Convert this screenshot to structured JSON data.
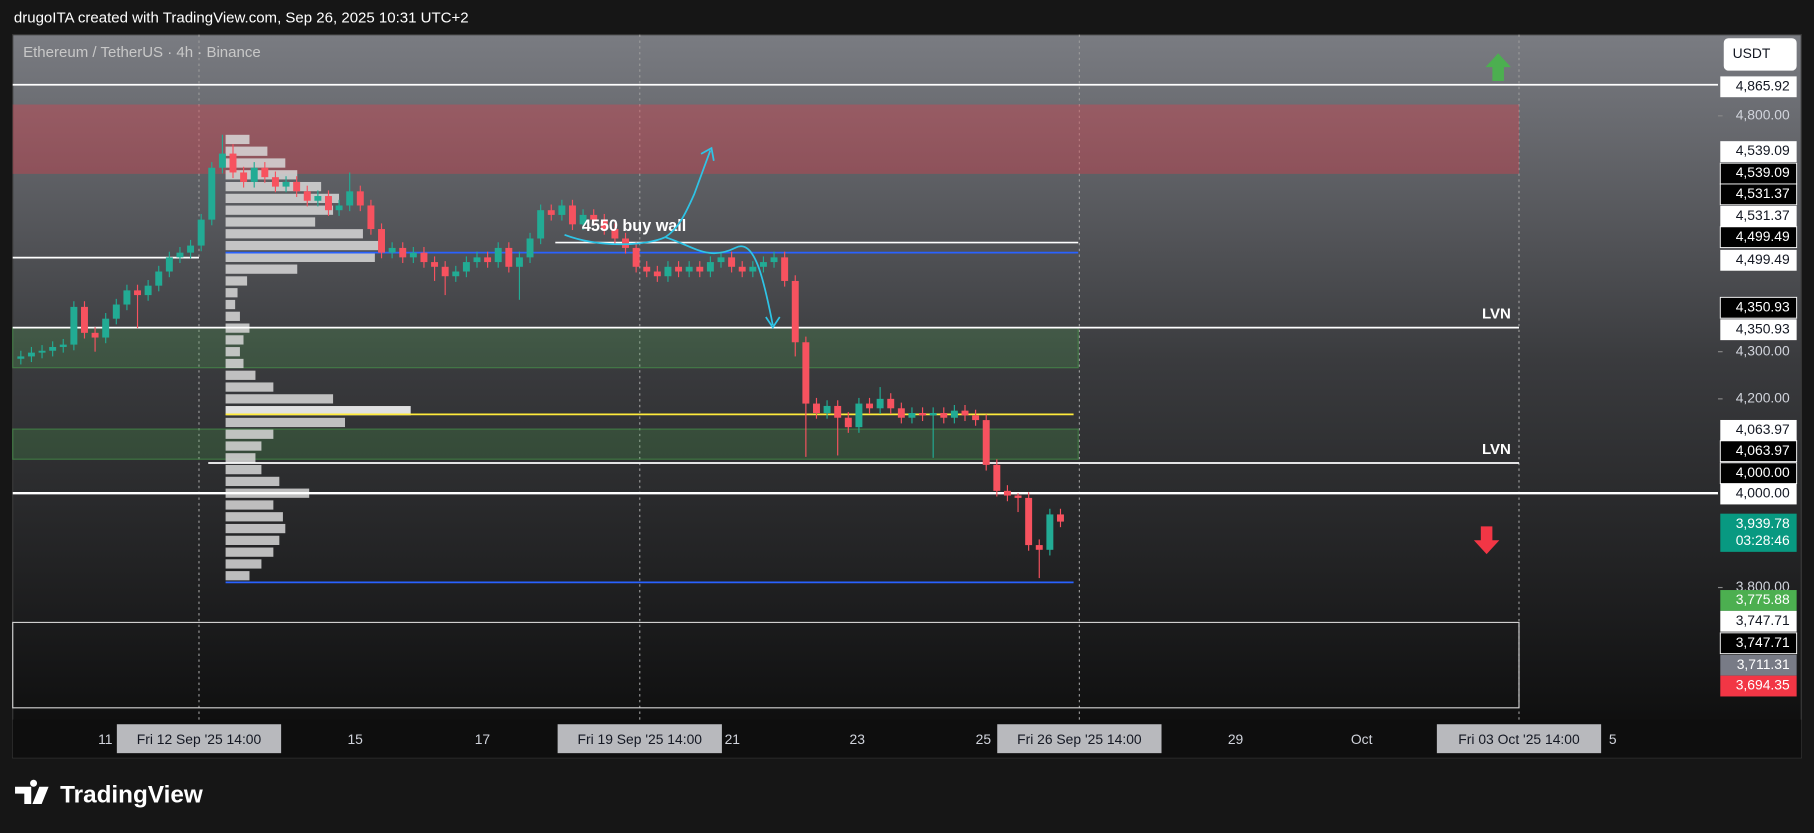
{
  "header": {
    "credit": "drugoITA created with TradingView.com, Sep 26, 2025 10:31 UTC+2",
    "logo": "TradingView"
  },
  "chart_data": {
    "type": "candlestick",
    "title": "Ethereum / TetherUS · 4h · Binance",
    "currency": "USDT",
    "up_color": "#22ab94",
    "down_color": "#f7525f",
    "ylim": [
      3520,
      4972
    ],
    "yticks": [
      {
        "value": 4800,
        "label": "4,800.00"
      },
      {
        "value": 4300,
        "label": "4,300.00"
      },
      {
        "value": 4200,
        "label": "4,200.00"
      },
      {
        "value": 3800,
        "label": "3,800.00"
      }
    ],
    "x_labels": [
      {
        "text": "11",
        "highlighted": false
      },
      {
        "text": "Fri 12 Sep '25   14:00",
        "highlighted": true
      },
      {
        "text": "15",
        "highlighted": false
      },
      {
        "text": "17",
        "highlighted": false
      },
      {
        "text": "Fri 19 Sep '25   14:00",
        "highlighted": true
      },
      {
        "text": "21",
        "highlighted": false
      },
      {
        "text": "23",
        "highlighted": false
      },
      {
        "text": "25",
        "highlighted": false
      },
      {
        "text": "Fri 26 Sep '25   14:00",
        "highlighted": true
      },
      {
        "text": "29",
        "highlighted": false
      },
      {
        "text": "Oct",
        "highlighted": false
      },
      {
        "text": "Fri 03 Oct '25   14:00",
        "highlighted": true
      },
      {
        "text": "5",
        "highlighted": false
      }
    ],
    "candles": {
      "open": [
        4285,
        4290,
        4298,
        4302,
        4310,
        4315,
        4395,
        4340,
        4330,
        4370,
        4400,
        4430,
        4420,
        4440,
        4470,
        4500,
        4510,
        4525,
        4580,
        4690,
        4720,
        4680,
        4660,
        4690,
        4670,
        4650,
        4660,
        4640,
        4620,
        4630,
        4600,
        4610,
        4640,
        4610,
        4560,
        4510,
        4520,
        4500,
        4510,
        4490,
        4480,
        4460,
        4470,
        4490,
        4500,
        4490,
        4520,
        4480,
        4500,
        4540,
        4600,
        4590,
        4610,
        4570,
        4590,
        4580,
        4560,
        4540,
        4520,
        4480,
        4470,
        4460,
        4480,
        4470,
        4480,
        4470,
        4490,
        4500,
        4480,
        4470,
        4480,
        4490,
        4500,
        4450,
        4320,
        4190,
        4170,
        4185,
        4160,
        4140,
        4190,
        4180,
        4200,
        4180,
        4160,
        4170,
        4165,
        4170,
        4160,
        4175,
        4165,
        4155,
        4060,
        4005,
        3995,
        3990,
        3890,
        3880,
        3955
      ],
      "high": [
        4302,
        4310,
        4314,
        4322,
        4327,
        4407,
        4407,
        4352,
        4382,
        4412,
        4442,
        4442,
        4452,
        4482,
        4512,
        4522,
        4537,
        4592,
        4702,
        4760,
        4740,
        4692,
        4702,
        4702,
        4682,
        4672,
        4672,
        4652,
        4642,
        4642,
        4622,
        4680,
        4652,
        4622,
        4572,
        4532,
        4532,
        4522,
        4522,
        4502,
        4492,
        4482,
        4502,
        4512,
        4512,
        4532,
        4532,
        4512,
        4552,
        4612,
        4612,
        4622,
        4622,
        4602,
        4602,
        4592,
        4572,
        4552,
        4532,
        4492,
        4482,
        4492,
        4492,
        4492,
        4492,
        4502,
        4512,
        4512,
        4492,
        4492,
        4502,
        4512,
        4512,
        4462,
        4332,
        4202,
        4197,
        4197,
        4172,
        4202,
        4202,
        4225,
        4212,
        4192,
        4182,
        4182,
        4182,
        4182,
        4187,
        4187,
        4177,
        4167,
        4072,
        4017,
        4000,
        4002,
        3902,
        3967,
        3967
      ],
      "low": [
        4273,
        4278,
        4286,
        4290,
        4298,
        4303,
        4328,
        4300,
        4318,
        4358,
        4388,
        4350,
        4408,
        4428,
        4458,
        4488,
        4498,
        4513,
        4568,
        4678,
        4668,
        4648,
        4648,
        4658,
        4638,
        4638,
        4628,
        4608,
        4608,
        4588,
        4588,
        4598,
        4598,
        4548,
        4498,
        4498,
        4488,
        4488,
        4478,
        4450,
        4420,
        4448,
        4458,
        4478,
        4478,
        4478,
        4468,
        4410,
        4488,
        4528,
        4578,
        4578,
        4558,
        4558,
        4568,
        4548,
        4528,
        4508,
        4468,
        4458,
        4448,
        4448,
        4458,
        4458,
        4458,
        4458,
        4478,
        4468,
        4458,
        4458,
        4468,
        4478,
        4438,
        4290,
        4077,
        4158,
        4158,
        4080,
        4128,
        4128,
        4168,
        4168,
        4168,
        4148,
        4148,
        4153,
        4075,
        4148,
        4148,
        4153,
        4143,
        4048,
        3993,
        3983,
        3960,
        3878,
        3820,
        3868,
        3928
      ],
      "close": [
        4290,
        4298,
        4302,
        4310,
        4315,
        4395,
        4340,
        4330,
        4370,
        4400,
        4430,
        4420,
        4440,
        4470,
        4500,
        4510,
        4525,
        4580,
        4690,
        4720,
        4680,
        4660,
        4690,
        4670,
        4650,
        4660,
        4640,
        4620,
        4630,
        4600,
        4610,
        4640,
        4610,
        4560,
        4510,
        4520,
        4500,
        4510,
        4490,
        4480,
        4460,
        4470,
        4490,
        4500,
        4490,
        4520,
        4480,
        4500,
        4540,
        4600,
        4590,
        4610,
        4570,
        4590,
        4580,
        4560,
        4540,
        4520,
        4480,
        4470,
        4460,
        4480,
        4470,
        4480,
        4470,
        4490,
        4500,
        4480,
        4470,
        4480,
        4490,
        4500,
        4450,
        4320,
        4190,
        4170,
        4185,
        4160,
        4140,
        4190,
        4180,
        4200,
        4180,
        4160,
        4170,
        4165,
        4170,
        4160,
        4175,
        4165,
        4155,
        4060,
        4005,
        3995,
        3990,
        3890,
        3880,
        3955,
        3939.78
      ]
    },
    "volume_profile": {
      "color": "#d8d8d8",
      "poc_color": "#ffffff",
      "prices": [
        4750,
        4725,
        4700,
        4675,
        4650,
        4625,
        4600,
        4575,
        4550,
        4525,
        4500,
        4475,
        4450,
        4425,
        4400,
        4375,
        4350,
        4325,
        4300,
        4275,
        4250,
        4225,
        4200,
        4175,
        4150,
        4125,
        4100,
        4075,
        4050,
        4025,
        4000,
        3975,
        3950,
        3925,
        3900,
        3875,
        3850,
        3825
      ],
      "volumes": [
        20,
        35,
        50,
        60,
        80,
        95,
        90,
        75,
        115,
        130,
        125,
        60,
        18,
        10,
        8,
        12,
        20,
        15,
        12,
        15,
        25,
        40,
        90,
        155,
        100,
        40,
        30,
        25,
        30,
        45,
        70,
        40,
        48,
        50,
        45,
        40,
        30,
        20
      ]
    },
    "zones": [
      {
        "from": 4824,
        "to": 4677,
        "fill": "rgba(242,54,69,0.32)",
        "stroke": "none"
      },
      {
        "from": 4350.93,
        "to": 4266,
        "fill": "rgba(76,175,80,0.22)",
        "stroke": "rgba(76,175,80,0.5)"
      },
      {
        "from": 4136,
        "to": 4072,
        "fill": "rgba(76,175,80,0.22)",
        "stroke": "rgba(76,175,80,0.5)"
      },
      {
        "from": 3726,
        "to": 3545,
        "fill": "none",
        "stroke": "#cfcfcf"
      }
    ],
    "levels": [
      {
        "price": 4865.92,
        "color": "#ffffff"
      },
      {
        "price": 4499.49,
        "color": "#ffffff"
      },
      {
        "price": 4531.37,
        "color": "#ffffff"
      },
      {
        "price": 4510,
        "color": "#2962ff"
      },
      {
        "price": 4350.93,
        "color": "#ffffff"
      },
      {
        "price": 4167,
        "color": "#ffeb3b"
      },
      {
        "price": 4063.97,
        "color": "#ffffff"
      },
      {
        "price": 4000,
        "color": "#ffffff"
      },
      {
        "price": 3811,
        "color": "#2962ff"
      }
    ],
    "annotations": [
      "4550 buy wall",
      "LVN",
      "LVN"
    ],
    "price_labels": [
      {
        "value": 4865.92,
        "label": "4,865.92",
        "color": "#ffffff"
      },
      {
        "value": 4539.09,
        "label": "4,539.09",
        "color": "#ffffff"
      },
      {
        "value": 4539.09,
        "label": "4,539.09",
        "color": "#000000"
      },
      {
        "value": 4531.37,
        "label": "4,531.37",
        "color": "#000000"
      },
      {
        "value": 4531.37,
        "label": "4,531.37",
        "color": "#ffffff"
      },
      {
        "value": 4499.49,
        "label": "4,499.49",
        "color": "#000000"
      },
      {
        "value": 4499.49,
        "label": "4,499.49",
        "color": "#ffffff"
      },
      {
        "value": 4350.93,
        "label": "4,350.93",
        "color": "#000000"
      },
      {
        "value": 4350.93,
        "label": "4,350.93",
        "color": "#ffffff"
      },
      {
        "value": 4063.97,
        "label": "4,063.97",
        "color": "#ffffff"
      },
      {
        "value": 4063.97,
        "label": "4,063.97",
        "color": "#000000"
      },
      {
        "value": 4000,
        "label": "4,000.00",
        "color": "#000000"
      },
      {
        "value": 4000,
        "label": "4,000.00",
        "color": "#ffffff"
      },
      {
        "value": 3939.78,
        "label": "3,939.78",
        "color": "#089981"
      },
      {
        "value": 3775.88,
        "label": "3,775.88",
        "color": "#4caf50"
      },
      {
        "value": 3747.71,
        "label": "3,747.71",
        "color": "#ffffff"
      },
      {
        "value": 3747.71,
        "label": "3,747.71",
        "color": "#000000"
      },
      {
        "value": 3711.31,
        "label": "3,711.31",
        "color": "#787b86"
      },
      {
        "value": 3694.35,
        "label": "3,694.35",
        "color": "#f23645"
      }
    ],
    "countdown": "03:28:46"
  }
}
